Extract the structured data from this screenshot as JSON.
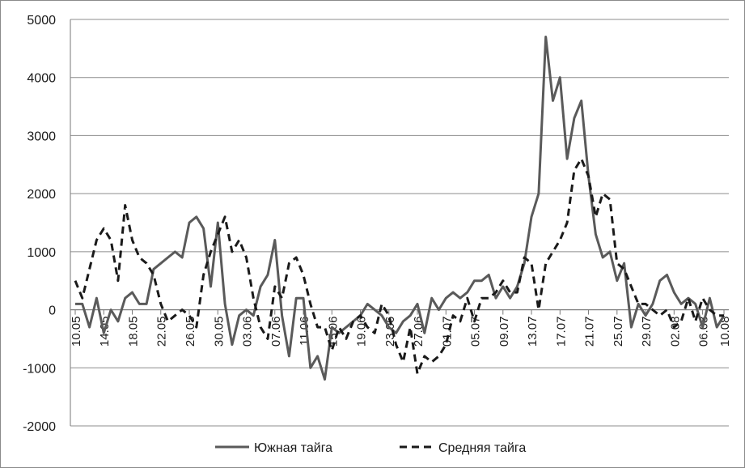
{
  "chart_data": {
    "type": "line",
    "title": "",
    "xlabel": "",
    "ylabel": "",
    "ylim": [
      -2000,
      5000
    ],
    "yticks": [
      -2000,
      -1000,
      0,
      1000,
      2000,
      3000,
      4000,
      5000
    ],
    "ytick_labels": [
      "-2000",
      "-1000",
      "0",
      "1000",
      "2000",
      "3000",
      "4000",
      "5000"
    ],
    "grid": "horizontal",
    "legend_position": "bottom",
    "n_points": 92,
    "xtick_labels": [
      "10.05",
      "14.05",
      "18.05",
      "22.05",
      "26.05",
      "30.05",
      "03.06",
      "07.06",
      "11.06",
      "15.06",
      "19.06",
      "23.06",
      "27.06",
      "01.07",
      "05.07",
      "09.07",
      "13.07",
      "17.07",
      "21.07",
      "25.07",
      "29.07",
      "02.08",
      "06.08",
      "10.08"
    ],
    "series": [
      {
        "name": "Южная тайга",
        "style": "solid",
        "color": "#5a5a5a",
        "values": [
          100,
          100,
          -300,
          200,
          -400,
          0,
          -200,
          200,
          300,
          100,
          100,
          700,
          800,
          900,
          1000,
          900,
          1500,
          1600,
          1400,
          400,
          1500,
          100,
          -600,
          -100,
          0,
          -100,
          400,
          600,
          1200,
          -100,
          -800,
          200,
          200,
          -1000,
          -800,
          -1200,
          -300,
          -400,
          -300,
          -200,
          -100,
          100,
          0,
          -100,
          -300,
          -400,
          -200,
          -100,
          100,
          -400,
          200,
          0,
          200,
          300,
          200,
          300,
          500,
          500,
          600,
          200,
          400,
          200,
          400,
          800,
          1600,
          2000,
          4700,
          3600,
          4000,
          2600,
          3300,
          3600,
          2300,
          1300,
          900,
          1000,
          500,
          800,
          -300,
          100,
          -100,
          100,
          500,
          600,
          300,
          100,
          200,
          100,
          -300,
          200,
          -300,
          -100
        ]
      },
      {
        "name": "Средняя тайга",
        "style": "dashed",
        "color": "#1a1a1a",
        "values": [
          500,
          200,
          700,
          1200,
          1400,
          1200,
          500,
          1800,
          1200,
          900,
          800,
          600,
          100,
          -200,
          -100,
          0,
          -100,
          -300,
          600,
          1000,
          1300,
          1600,
          1000,
          1200,
          900,
          200,
          -300,
          -500,
          400,
          200,
          800,
          900,
          600,
          100,
          -300,
          -300,
          -700,
          -300,
          -500,
          -200,
          -100,
          -300,
          -400,
          100,
          -100,
          -600,
          -900,
          -300,
          -1100,
          -800,
          -900,
          -800,
          -600,
          -100,
          -200,
          200,
          -200,
          200,
          200,
          300,
          500,
          300,
          300,
          900,
          800,
          0,
          800,
          1000,
          1200,
          1500,
          2400,
          2600,
          2300,
          1600,
          2000,
          1900,
          800,
          700,
          400,
          100,
          100,
          0,
          -100,
          0,
          -300,
          -200,
          200,
          -200,
          200,
          0,
          -100,
          -100
        ]
      }
    ]
  }
}
